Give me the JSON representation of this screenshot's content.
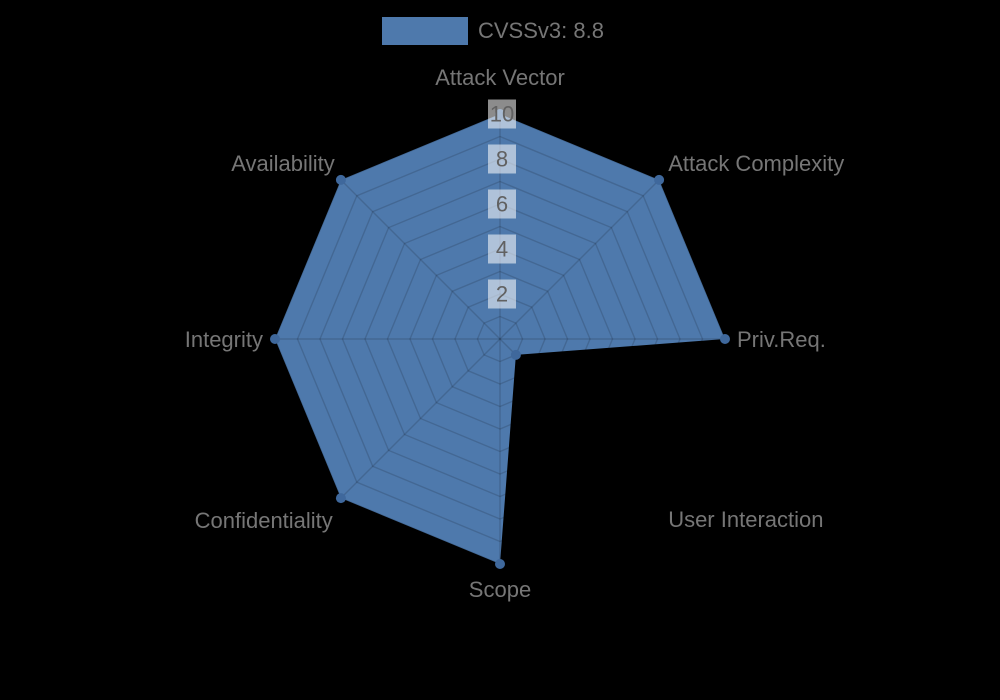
{
  "legend": {
    "label": "CVSSv3: 8.8"
  },
  "chart_data": {
    "type": "radar",
    "title": "",
    "categories": [
      "Attack Vector",
      "Attack Complexity",
      "Priv.Req.",
      "User Interaction",
      "Scope",
      "Confidentiality",
      "Integrity",
      "Availability"
    ],
    "series": [
      {
        "name": "CVSSv3: 8.8",
        "values": [
          10,
          10,
          10,
          1,
          10,
          10,
          10,
          10
        ]
      }
    ],
    "rmin": 0,
    "rmax": 10,
    "ring_step": 1,
    "tick_labels": [
      "2",
      "4",
      "6",
      "8",
      "10"
    ],
    "grid_on": true,
    "legend_position": "top-center",
    "colors": {
      "fill": "#4e79ac",
      "point": "#3f689c",
      "grid": "rgba(0,0,0,0.14)",
      "tick_text": "#616161",
      "tick_backdrop": "rgba(255,255,255,0.55)",
      "label": "#767676",
      "background": "#000000"
    }
  }
}
